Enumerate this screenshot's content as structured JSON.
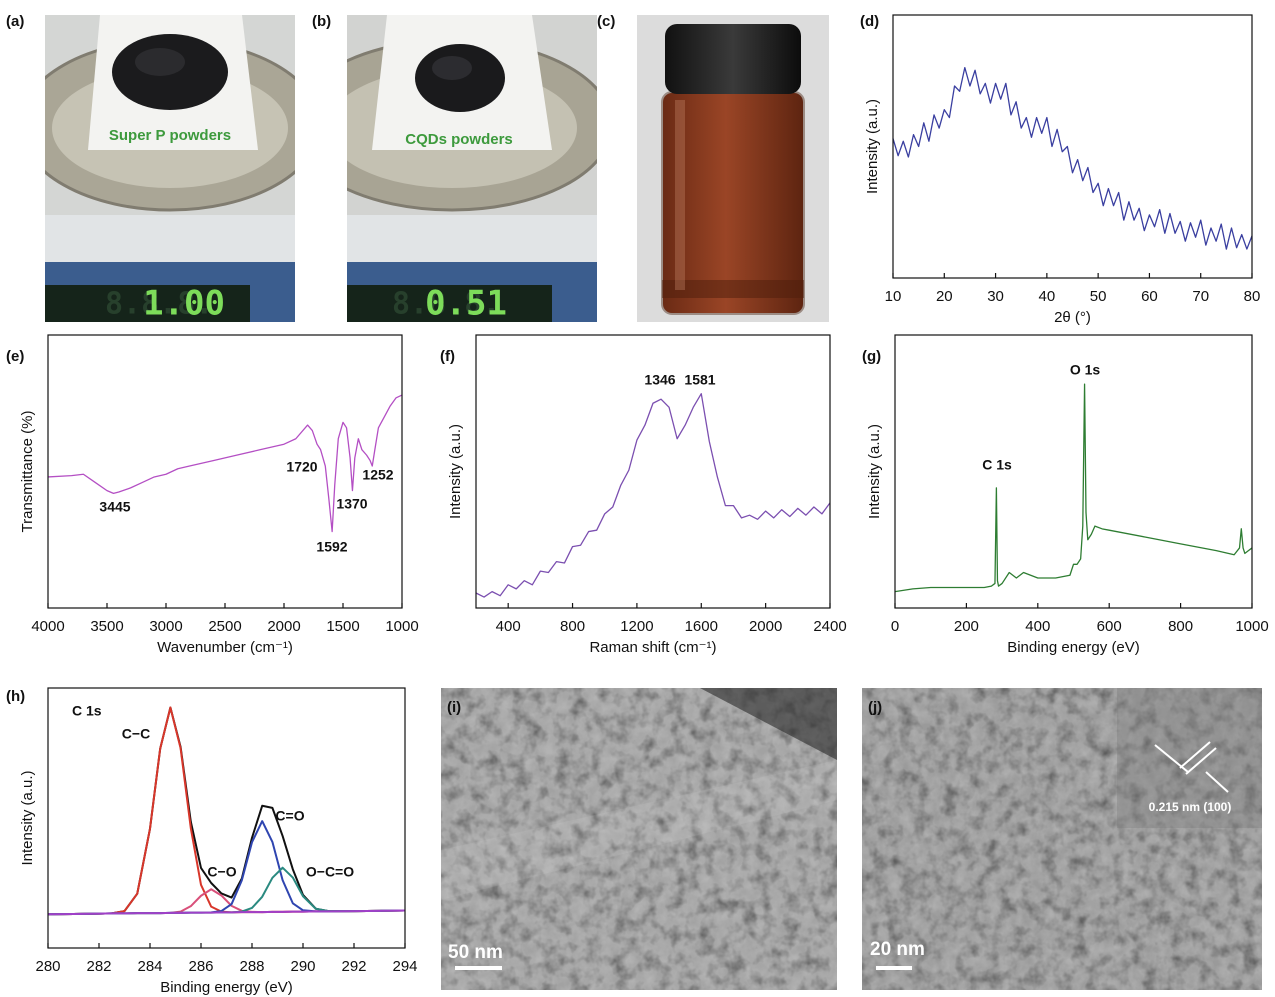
{
  "photos": [
    {
      "label": "(a)",
      "caption": "Super P powders",
      "display": "1.00"
    },
    {
      "label": "(b)",
      "caption": "CQDs powders",
      "display": "0.51"
    },
    {
      "label": "(c)"
    }
  ],
  "chart_data": [
    {
      "type": "line",
      "label": "(d)",
      "xlabel": "2θ (°)",
      "ylabel": "Intensity (a.u.)",
      "xlim": [
        10,
        80
      ],
      "xticks": [
        10,
        20,
        30,
        40,
        50,
        60,
        70,
        80
      ],
      "ylim": [
        0,
        100
      ],
      "x": [
        10,
        11,
        12,
        13,
        14,
        15,
        16,
        17,
        18,
        19,
        20,
        21,
        22,
        23,
        24,
        25,
        26,
        27,
        28,
        29,
        30,
        31,
        32,
        33,
        34,
        35,
        36,
        37,
        38,
        39,
        40,
        41,
        42,
        43,
        44,
        45,
        46,
        47,
        48,
        49,
        50,
        51,
        52,
        53,
        54,
        55,
        56,
        57,
        58,
        59,
        60,
        61,
        62,
        63,
        64,
        65,
        66,
        67,
        68,
        69,
        70,
        71,
        72,
        73,
        74,
        75,
        76,
        77,
        78,
        79,
        80
      ],
      "series": [
        {
          "color": "#3a3fa0",
          "values": [
            53,
            46.5,
            52,
            46,
            54.5,
            50,
            59,
            52,
            62,
            57,
            64,
            61,
            73,
            71,
            80,
            73,
            79,
            70,
            74,
            66.5,
            74,
            68,
            74,
            62,
            67,
            57,
            61,
            53.5,
            61,
            55,
            61,
            50,
            56.5,
            48,
            50,
            40,
            45,
            37,
            42,
            32.5,
            36,
            27.5,
            34,
            27.5,
            32.5,
            22,
            29,
            22,
            26.5,
            18,
            24,
            19.5,
            26,
            17,
            24.5,
            17,
            21.5,
            14,
            21,
            15.5,
            22,
            12.5,
            19,
            14,
            20.5,
            11,
            19,
            11.5,
            16.5,
            11,
            16
          ]
        }
      ]
    },
    {
      "type": "line",
      "label": "(e)",
      "xlabel": "Wavenumber (cm⁻¹)",
      "ylabel": "Transmittance (%)",
      "xlim": [
        4000,
        1000
      ],
      "xticks": [
        4000,
        3500,
        3000,
        2500,
        2000,
        1500,
        1000
      ],
      "ylim": [
        0,
        100
      ],
      "x": [
        4000,
        3800,
        3700,
        3600,
        3500,
        3445,
        3400,
        3300,
        3200,
        3100,
        3000,
        2900,
        2800,
        2600,
        2400,
        2200,
        2000,
        1900,
        1800,
        1760,
        1720,
        1690,
        1650,
        1620,
        1592,
        1570,
        1540,
        1500,
        1470,
        1440,
        1420,
        1400,
        1370,
        1340,
        1300,
        1270,
        1252,
        1230,
        1200,
        1150,
        1100,
        1050,
        1000
      ],
      "series": [
        {
          "color": "#b44fc4",
          "values": [
            48,
            48.5,
            49,
            46,
            43,
            42,
            42.5,
            44,
            46,
            48,
            49,
            51,
            52,
            54,
            56,
            58,
            60,
            62,
            67,
            65,
            60,
            58,
            52,
            40,
            28,
            45,
            62,
            68,
            66,
            55,
            43,
            55,
            62,
            58,
            56,
            54,
            52,
            58,
            66,
            70,
            74,
            77,
            78
          ]
        }
      ],
      "annotations": [
        "3445",
        "1720",
        "1592",
        "1370",
        "1252"
      ]
    },
    {
      "type": "line",
      "label": "(f)",
      "xlabel": "Raman shift (cm⁻¹)",
      "ylabel": "Intensity (a.u.)",
      "xlim": [
        200,
        2400
      ],
      "xticks": [
        400,
        800,
        1200,
        1600,
        2000,
        2400
      ],
      "ylim": [
        0,
        100
      ],
      "x": [
        200,
        250,
        300,
        350,
        400,
        450,
        500,
        550,
        600,
        650,
        700,
        750,
        800,
        850,
        900,
        950,
        1000,
        1050,
        1100,
        1150,
        1200,
        1250,
        1300,
        1350,
        1400,
        1450,
        1500,
        1550,
        1600,
        1650,
        1700,
        1750,
        1800,
        1850,
        1900,
        1950,
        2000,
        2050,
        2100,
        2150,
        2200,
        2250,
        2300,
        2350,
        2400
      ],
      "series": [
        {
          "color": "#7b4fb0",
          "values": [
            5.5,
            4,
            6,
            4.5,
            8.5,
            7,
            10,
            8.5,
            13.5,
            13,
            17,
            16.5,
            22.5,
            23,
            28,
            28.5,
            34.5,
            37,
            45,
            50.5,
            61.5,
            67,
            75,
            76.5,
            73.5,
            62,
            67,
            73.5,
            78.5,
            61,
            48,
            37.5,
            37.5,
            33,
            34,
            32.5,
            35.5,
            33,
            36,
            33.5,
            36.5,
            34,
            37,
            34.5,
            38.5
          ]
        }
      ],
      "annotations": [
        "1346",
        "1581"
      ]
    },
    {
      "type": "line",
      "label": "(g)",
      "xlabel": "Binding energy (eV)",
      "ylabel": "Intensity (a.u.)",
      "xlim": [
        0,
        1000
      ],
      "xticks": [
        0,
        200,
        400,
        600,
        800,
        1000
      ],
      "ylim": [
        0,
        100
      ],
      "x": [
        0,
        50,
        100,
        150,
        200,
        250,
        270,
        280,
        284,
        287,
        290,
        300,
        320,
        340,
        360,
        400,
        450,
        490,
        500,
        510,
        520,
        526,
        531,
        535,
        540,
        550,
        560,
        580,
        600,
        700,
        800,
        900,
        950,
        965,
        970,
        975,
        980,
        990,
        1000
      ],
      "series": [
        {
          "color": "#2e7d32",
          "values": [
            6,
            7,
            7.5,
            7.5,
            7.5,
            7.5,
            8,
            9,
            44,
            10,
            8,
            9,
            13,
            11,
            13,
            11,
            11,
            12,
            16,
            16,
            18,
            30,
            82,
            35,
            25,
            27,
            30,
            29,
            28.5,
            26,
            23.5,
            21,
            19.5,
            22,
            29,
            22,
            20,
            21,
            22
          ]
        }
      ],
      "annotations": [
        "C 1s",
        "O 1s"
      ]
    },
    {
      "type": "line",
      "label": "(h)",
      "title": "C 1s",
      "xlabel": "Binding energy (eV)",
      "ylabel": "Intensity (a.u.)",
      "xlim": [
        280,
        294
      ],
      "xticks": [
        280,
        282,
        284,
        286,
        288,
        290,
        292,
        294
      ],
      "ylim": [
        0,
        100
      ],
      "x": [
        280,
        281,
        282,
        282.5,
        283,
        283.5,
        284,
        284.4,
        284.8,
        285.2,
        285.6,
        286,
        286.4,
        286.8,
        287.2,
        287.6,
        288,
        288.4,
        288.8,
        289.2,
        289.6,
        290,
        290.5,
        291,
        292,
        293,
        294
      ],
      "series": [
        {
          "color": "#111111",
          "values": [
            13,
            13.1,
            13.2,
            13.3,
            14.2,
            20.9,
            45.9,
            76.7,
            92.5,
            77.3,
            48.6,
            30.8,
            25,
            21,
            19.4,
            26.7,
            42.4,
            54.7,
            53.9,
            43.1,
            30.3,
            20.4,
            15.1,
            14.2,
            14.2,
            14.3,
            14.4
          ]
        },
        {
          "name": "C−C",
          "color": "#d8362a",
          "values": [
            13,
            13.1,
            13.2,
            13.3,
            14.2,
            20.9,
            45.9,
            76.7,
            92.5,
            76.8,
            46.1,
            24.3,
            15.9,
            14,
            13.7,
            13.8,
            13.8,
            13.8,
            13.9,
            13.9,
            14,
            14,
            14.1,
            14.1,
            14.2,
            14.3,
            14.4
          ]
        },
        {
          "name": "C−O",
          "color": "#d9507a",
          "values": [
            13,
            13.1,
            13.2,
            13.3,
            13.3,
            13.4,
            13.4,
            13.4,
            13.5,
            14,
            16.1,
            20.1,
            22.6,
            20.2,
            16.2,
            14.3,
            13.9,
            13.8,
            13.9,
            13.9,
            14,
            14,
            14.1,
            14.1,
            14.2,
            14.3,
            14.4
          ]
        },
        {
          "name": "C=O",
          "color": "#2f45b0",
          "values": [
            13,
            13.1,
            13.2,
            13.3,
            13.3,
            13.4,
            13.4,
            13.4,
            13.5,
            13.5,
            13.6,
            13.6,
            13.7,
            14.2,
            16.9,
            26,
            40.7,
            48.8,
            40.8,
            26.1,
            17.2,
            14.5,
            14.1,
            14.1,
            14.2,
            14.3,
            14.4
          ]
        },
        {
          "name": "O−C=O",
          "color": "#2a8a80",
          "values": [
            13,
            13.1,
            13.2,
            13.3,
            13.3,
            13.4,
            13.4,
            13.4,
            13.5,
            13.5,
            13.6,
            13.6,
            13.6,
            13.7,
            13.7,
            14,
            15.4,
            19.7,
            27,
            30.9,
            27.1,
            19.9,
            15.1,
            14.2,
            14.2,
            14.3,
            14.4
          ]
        },
        {
          "color": "#a040c8",
          "values": [
            13,
            13.1,
            13.2,
            13.3,
            13.3,
            13.4,
            13.4,
            13.4,
            13.5,
            13.5,
            13.6,
            13.6,
            13.6,
            13.7,
            13.7,
            13.8,
            13.8,
            13.8,
            13.9,
            13.9,
            14,
            14,
            14.1,
            14.1,
            14.2,
            14.3,
            14.4
          ]
        }
      ]
    }
  ],
  "tem": [
    {
      "label": "(i)",
      "scale_bar": "50 nm"
    },
    {
      "label": "(j)",
      "scale_bar": "20 nm",
      "annotation": "0.215 nm (100)"
    }
  ]
}
